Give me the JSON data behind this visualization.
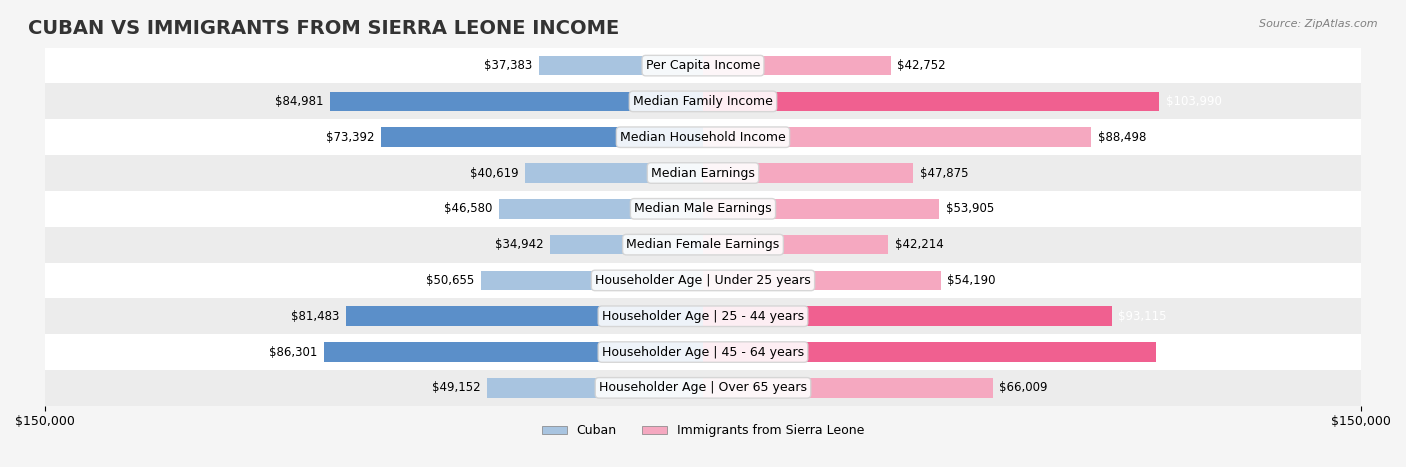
{
  "title": "CUBAN VS IMMIGRANTS FROM SIERRA LEONE INCOME",
  "source": "Source: ZipAtlas.com",
  "categories": [
    "Per Capita Income",
    "Median Family Income",
    "Median Household Income",
    "Median Earnings",
    "Median Male Earnings",
    "Median Female Earnings",
    "Householder Age | Under 25 years",
    "Householder Age | 25 - 44 years",
    "Householder Age | 45 - 64 years",
    "Householder Age | Over 65 years"
  ],
  "cuban_values": [
    37383,
    84981,
    73392,
    40619,
    46580,
    34942,
    50655,
    81483,
    86301,
    49152
  ],
  "sierra_leone_values": [
    42752,
    103990,
    88498,
    47875,
    53905,
    42214,
    54190,
    93115,
    103227,
    66009
  ],
  "cuban_color_light": "#a8c4e0",
  "cuban_color_dark": "#5b8fc9",
  "sierra_leone_color_light": "#f5a8c0",
  "sierra_leone_color_dark": "#f06090",
  "bar_height": 0.55,
  "max_value": 150000,
  "bg_color": "#f5f5f5",
  "row_colors": [
    "#ffffff",
    "#ececec"
  ],
  "xlim": 150000,
  "xlabel_left": "$150,000",
  "xlabel_right": "$150,000",
  "legend_cuban": "Cuban",
  "legend_sierra": "Immigrants from Sierra Leone",
  "title_fontsize": 14,
  "label_fontsize": 9,
  "value_fontsize": 8.5
}
